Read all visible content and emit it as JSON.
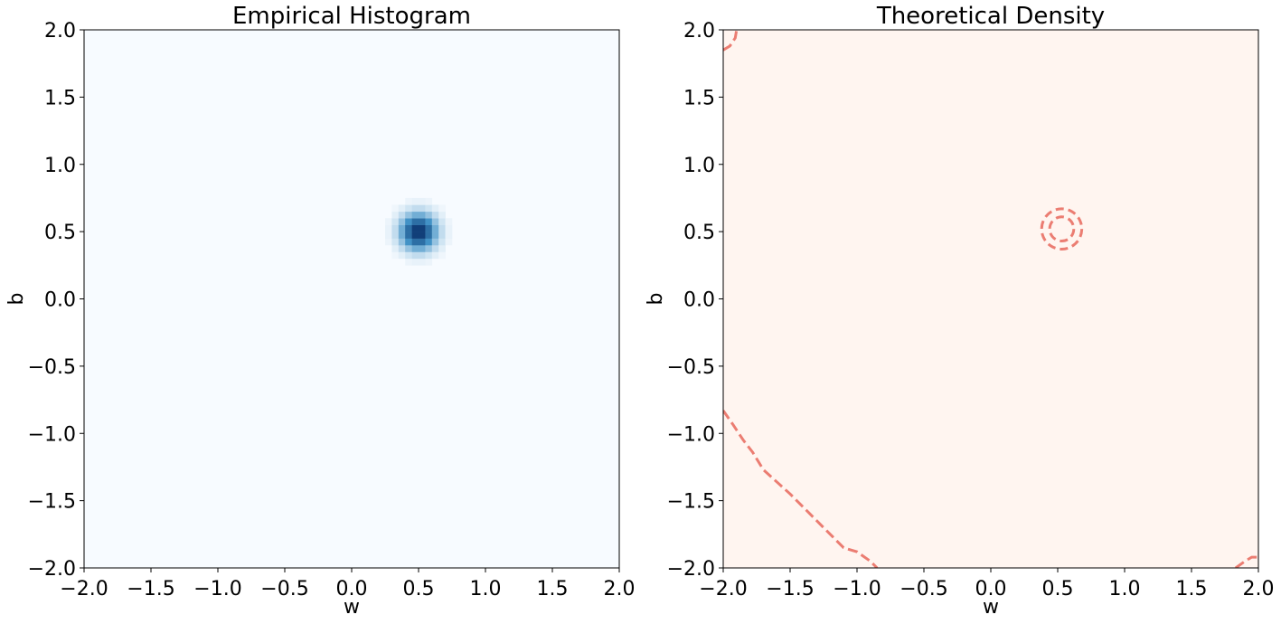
{
  "chart_data": [
    {
      "type": "heatmap",
      "title": "Empirical Histogram",
      "xlabel": "w",
      "ylabel": "b",
      "xlim": [
        -2.0,
        2.0
      ],
      "ylim": [
        -2.0,
        2.0
      ],
      "xticks": [
        "−2.0",
        "−1.5",
        "−1.0",
        "−0.5",
        "0.0",
        "0.5",
        "1.0",
        "1.5",
        "2.0"
      ],
      "yticks": [
        "−2.0",
        "−1.5",
        "−1.0",
        "−0.5",
        "0.0",
        "0.5",
        "1.0",
        "1.5",
        "2.0"
      ],
      "colormap": "Blues",
      "colors": {
        "low": "#f7fbff",
        "mid": "#4292c6",
        "high": "#08306b"
      },
      "peak": {
        "w": 0.5,
        "b": 0.5
      },
      "spread": 0.09,
      "bins": 80,
      "grid": false
    },
    {
      "type": "heatmap",
      "title": "Theoretical Density",
      "xlabel": "w",
      "ylabel": "b",
      "xlim": [
        -2.0,
        2.0
      ],
      "ylim": [
        -2.0,
        2.0
      ],
      "xticks": [
        "−2.0",
        "−1.5",
        "−1.0",
        "−0.5",
        "0.0",
        "0.5",
        "1.0",
        "1.5",
        "2.0"
      ],
      "yticks": [
        "−2.0",
        "−1.5",
        "−1.0",
        "−0.5",
        "0.0",
        "0.5",
        "1.0",
        "1.5",
        "2.0"
      ],
      "colormap": "Reds",
      "colors": {
        "low": "#fff5f0",
        "mid": "#ef3b2c",
        "high": "#67000d",
        "contour": "#e8675c"
      },
      "peak": {
        "w": 0.53,
        "b": 0.52
      },
      "spread": 0.1,
      "contour_style": "dashed",
      "contour_radii": [
        0.09,
        0.15
      ],
      "outer_contours": [
        [
          [
            -2.0,
            1.85
          ],
          [
            -1.95,
            1.88
          ],
          [
            -1.91,
            1.94
          ],
          [
            -1.9,
            2.0
          ]
        ],
        [
          [
            -2.0,
            -0.83
          ],
          [
            -1.93,
            -0.93
          ],
          [
            -1.85,
            -1.05
          ],
          [
            -1.78,
            -1.14
          ],
          [
            -1.7,
            -1.27
          ],
          [
            -1.6,
            -1.36
          ],
          [
            -1.5,
            -1.45
          ],
          [
            -1.4,
            -1.55
          ],
          [
            -1.3,
            -1.65
          ],
          [
            -1.2,
            -1.75
          ],
          [
            -1.1,
            -1.85
          ],
          [
            -1.0,
            -1.88
          ],
          [
            -0.9,
            -1.95
          ],
          [
            -0.85,
            -2.0
          ]
        ],
        [
          [
            1.83,
            -2.0
          ],
          [
            1.9,
            -1.95
          ],
          [
            1.95,
            -1.92
          ],
          [
            2.0,
            -1.92
          ]
        ]
      ],
      "grid": false
    }
  ]
}
